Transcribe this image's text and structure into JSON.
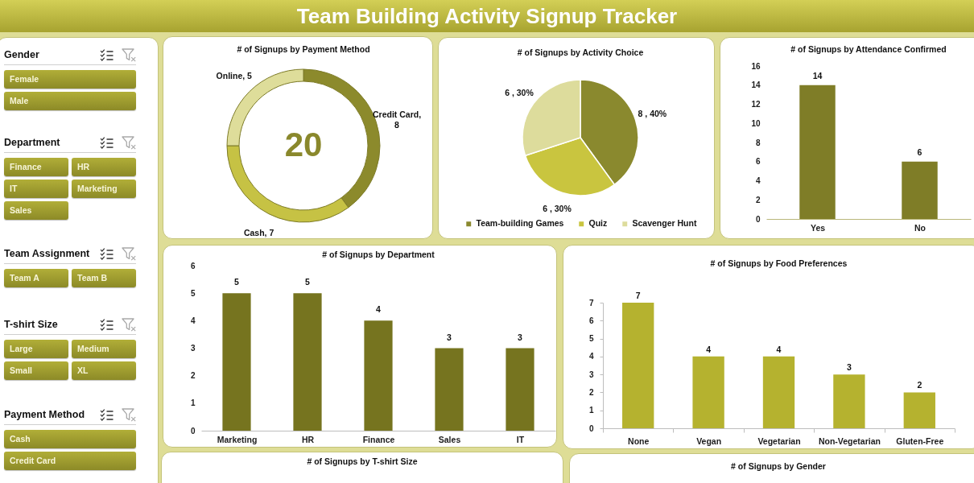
{
  "chart_data": [
    {
      "type": "other",
      "title": "Team Building Activity Signup Tracker"
    },
    {
      "type": "other",
      "title": "Gender",
      "categories": [
        "Female",
        "Male"
      ]
    },
    {
      "type": "other",
      "title": "Department",
      "categories": [
        "Finance",
        "HR",
        "IT",
        "Marketing",
        "Sales"
      ]
    },
    {
      "type": "other",
      "title": "Team Assignment",
      "categories": [
        "Team A",
        "Team B"
      ]
    },
    {
      "type": "other",
      "title": "T-shirt Size",
      "categories": [
        "Large",
        "Medium",
        "Small",
        "XL"
      ]
    },
    {
      "type": "other",
      "title": "Payment Method",
      "categories": [
        "Cash",
        "Credit Card"
      ]
    },
    {
      "type": "donut",
      "title": "# of Signups by Payment Method",
      "values": [
        8,
        7,
        5
      ],
      "colors": [
        "#8c8a2c",
        "#c6c244",
        "#dedd9a"
      ],
      "value_labels": [
        "Credit Card, 8",
        "Cash, 7",
        "Online, 5"
      ],
      "annotations": [
        "20"
      ]
    },
    {
      "type": "pie",
      "title": "# of Signups by Activity Choice",
      "categories": [
        "Team-building Games",
        "Quiz",
        "Scavenger Hunt"
      ],
      "values": [
        8,
        6,
        6
      ],
      "colors": [
        "#8a892e",
        "#c9c53f",
        "#dddc9c"
      ],
      "value_labels": [
        "8 , 40%",
        "6 , 30%",
        "6 , 30%"
      ],
      "legend": "bottom"
    },
    {
      "type": "bar",
      "title": "# of Signups by Attendance Confirmed",
      "categories": [
        "Yes",
        "No"
      ],
      "values": [
        14,
        6
      ],
      "color": "#7f7d27",
      "ylim": [
        0,
        16
      ],
      "yticks": [
        0,
        2,
        4,
        6,
        8,
        10,
        12,
        14,
        16
      ],
      "data_labels": true
    },
    {
      "type": "bar",
      "title": "# of Signups by Department",
      "categories": [
        "Marketing",
        "HR",
        "Finance",
        "Sales",
        "IT"
      ],
      "values": [
        5,
        5,
        4,
        3,
        3
      ],
      "color": "#76741f",
      "ylim": [
        0,
        6
      ],
      "yticks": [
        0,
        1,
        2,
        3,
        4,
        5,
        6
      ],
      "data_labels": true
    },
    {
      "type": "bar",
      "title": "# of Signups by Food Preferences",
      "categories": [
        "None",
        "Vegan",
        "Vegetarian",
        "Non-Vegetarian",
        "Gluten-Free"
      ],
      "values": [
        7,
        4,
        4,
        3,
        2
      ],
      "color": "#b5b22f",
      "ylim": [
        0,
        7
      ],
      "yticks": [
        0,
        1,
        2,
        3,
        4,
        5,
        6,
        7
      ],
      "data_labels": true
    },
    {
      "type": "other",
      "title": "# of Signups by T-shirt Size"
    },
    {
      "type": "other",
      "title": "# of Signups by Gender"
    }
  ]
}
